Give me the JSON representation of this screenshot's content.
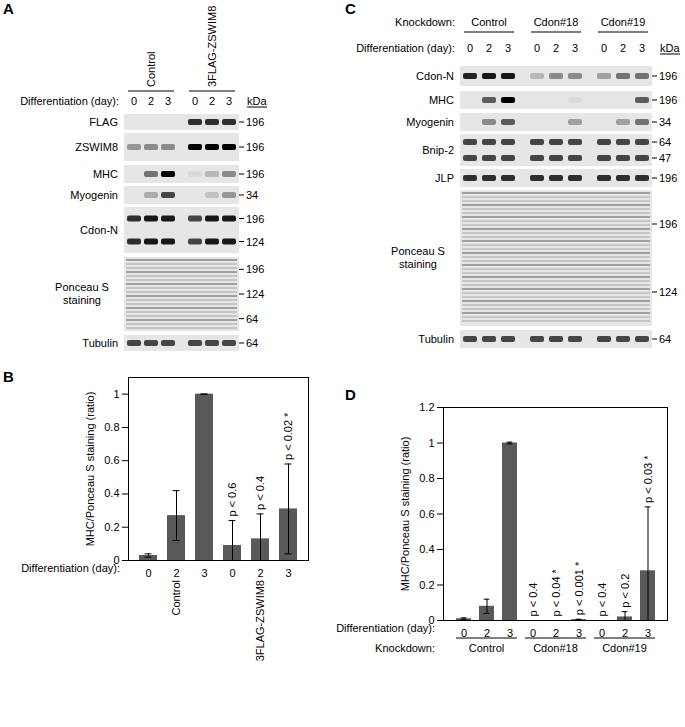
{
  "chart_data": [
    {
      "panel": "B",
      "type": "bar",
      "categories": [
        "0",
        "2",
        "3",
        "0",
        "2",
        "3"
      ],
      "values": [
        0.03,
        0.27,
        1,
        0.09,
        0.13,
        0.31
      ],
      "errors": [
        0.01,
        0.15,
        0,
        0.15,
        0.15,
        0.27
      ],
      "annotations": [
        null,
        null,
        null,
        "p < 0.6",
        "p < 0.4",
        "p < 0.02 *"
      ],
      "y_label": "MHC/Ponceau S staining (ratio)",
      "x_label": "Differentiation (day):",
      "groups": [
        {
          "label": "Control",
          "size": 3
        },
        {
          "label": "3FLAG-ZSWIM8",
          "size": 3
        }
      ],
      "ylim": [
        0,
        1.1
      ],
      "yticks": [
        0,
        0.2,
        0.4,
        0.6,
        0.8,
        1
      ],
      "color": "#595959"
    },
    {
      "panel": "D",
      "type": "bar",
      "categories": [
        "0",
        "2",
        "3",
        "0",
        "2",
        "3",
        "0",
        "2",
        "3"
      ],
      "values": [
        0.01,
        0.08,
        1,
        0,
        0,
        0.005,
        0,
        0.02,
        0.28
      ],
      "errors": [
        0.005,
        0.04,
        0.005,
        0,
        0,
        0.002,
        0,
        0.03,
        0.36
      ],
      "annotations": [
        null,
        null,
        null,
        "p < 0.4",
        "p < 0.04 *",
        "p < 0.001 *",
        "p < 0.4",
        "p < 0.2",
        "p < 0.03 *"
      ],
      "y_label": "MHC/Ponceau S staining (ratio)",
      "x_label": "Differentiation (day):",
      "group_axis_label": "Knockdown:",
      "groups": [
        {
          "label": "Control",
          "size": 3
        },
        {
          "label": "Cdon#18",
          "size": 3
        },
        {
          "label": "Cdon#19",
          "size": 3
        }
      ],
      "ylim": [
        0,
        1.2
      ],
      "yticks": [
        0,
        0.2,
        0.4,
        0.6,
        0.8,
        1,
        1.2
      ],
      "color": "#595959"
    }
  ],
  "blots": [
    {
      "panel": "A",
      "groups": [
        {
          "label": "Control",
          "size": 3
        },
        {
          "label": "3FLAG-ZSWIM8",
          "size": 3
        }
      ],
      "lane_label": "Differentiation (day):",
      "lanes": [
        0,
        2,
        3,
        0,
        2,
        3
      ],
      "marker_unit": "kDa",
      "rows": [
        {
          "label": "FLAG",
          "markers": [
            196
          ]
        },
        {
          "label": "ZSWIM8",
          "markers": [
            196
          ]
        },
        {
          "label": "MHC",
          "markers": [
            196
          ]
        },
        {
          "label": "Myogenin",
          "markers": [
            34
          ]
        },
        {
          "label": "Cdon-N",
          "markers": [
            196,
            124
          ]
        },
        {
          "label": "Ponceau S staining",
          "markers": [
            196,
            124,
            64
          ]
        },
        {
          "label": "Tubulin",
          "markers": [
            64
          ]
        }
      ]
    },
    {
      "panel": "C",
      "group_axis_label": "Knockdown:",
      "groups": [
        {
          "label": "Control",
          "size": 3
        },
        {
          "label": "Cdon#18",
          "size": 3
        },
        {
          "label": "Cdon#19",
          "size": 3
        }
      ],
      "lane_label": "Differentiation (day):",
      "lanes": [
        0,
        2,
        3,
        0,
        2,
        3,
        0,
        2,
        3
      ],
      "marker_unit": "kDa",
      "rows": [
        {
          "label": "Cdon-N",
          "markers": [
            196
          ]
        },
        {
          "label": "MHC",
          "markers": [
            196
          ]
        },
        {
          "label": "Myogenin",
          "markers": [
            34
          ]
        },
        {
          "label": "Bnip-2",
          "markers": [
            64,
            47
          ]
        },
        {
          "label": "JLP",
          "markers": [
            196
          ]
        },
        {
          "label": "Ponceau S staining",
          "markers": [
            196,
            124
          ]
        },
        {
          "label": "Tubulin",
          "markers": [
            64
          ]
        }
      ]
    }
  ]
}
